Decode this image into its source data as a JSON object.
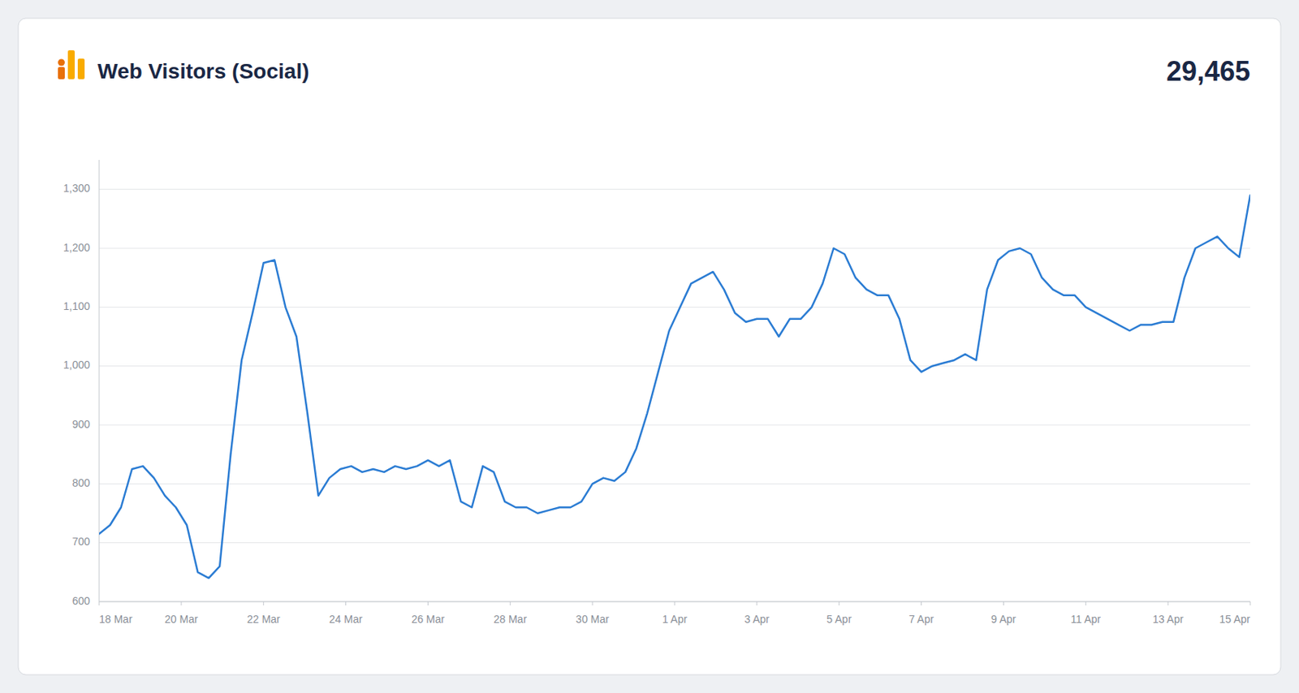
{
  "chart_data": {
    "type": "line",
    "title": "Web Visitors (Social)",
    "annotations": [
      "29,465"
    ],
    "color": "#2b7cd3",
    "grid": true,
    "xlim": [
      0,
      28
    ],
    "xticks": [
      {
        "value": 0,
        "label": "18 Mar"
      },
      {
        "value": 2,
        "label": "20 Mar"
      },
      {
        "value": 4,
        "label": "22 Mar"
      },
      {
        "value": 6,
        "label": "24 Mar"
      },
      {
        "value": 8,
        "label": "26 Mar"
      },
      {
        "value": 10,
        "label": "28 Mar"
      },
      {
        "value": 12,
        "label": "30 Mar"
      },
      {
        "value": 14,
        "label": "1 Apr"
      },
      {
        "value": 16,
        "label": "3 Apr"
      },
      {
        "value": 18,
        "label": "5 Apr"
      },
      {
        "value": 20,
        "label": "7 Apr"
      },
      {
        "value": 22,
        "label": "9 Apr"
      },
      {
        "value": 24,
        "label": "11 Apr"
      },
      {
        "value": 26,
        "label": "13 Apr"
      },
      {
        "value": 28,
        "label": "15 Apr"
      }
    ],
    "ylim": [
      600,
      1350
    ],
    "yticks": [
      600,
      700,
      800,
      900,
      {
        "value": 1000,
        "label": "1,000"
      },
      {
        "value": 1100,
        "label": "1,100"
      },
      {
        "value": 1200,
        "label": "1,200"
      },
      {
        "value": 1300,
        "label": "1,300"
      }
    ],
    "values": [
      715,
      730,
      760,
      825,
      830,
      810,
      780,
      760,
      730,
      650,
      640,
      660,
      850,
      1010,
      1090,
      1175,
      1180,
      1100,
      1050,
      920,
      780,
      810,
      825,
      830,
      820,
      825,
      820,
      830,
      825,
      830,
      840,
      830,
      840,
      770,
      760,
      830,
      820,
      770,
      760,
      760,
      750,
      755,
      760,
      760,
      770,
      800,
      810,
      805,
      820,
      860,
      920,
      990,
      1060,
      1100,
      1140,
      1150,
      1160,
      1130,
      1090,
      1075,
      1080,
      1080,
      1050,
      1080,
      1080,
      1100,
      1140,
      1200,
      1190,
      1150,
      1130,
      1120,
      1120,
      1080,
      1010,
      990,
      1000,
      1005,
      1010,
      1020,
      1010,
      1130,
      1180,
      1195,
      1200,
      1190,
      1150,
      1130,
      1120,
      1120,
      1100,
      1090,
      1080,
      1070,
      1060,
      1070,
      1070,
      1075,
      1075,
      1150,
      1200,
      1210,
      1220,
      1200,
      1185,
      1290
    ]
  }
}
